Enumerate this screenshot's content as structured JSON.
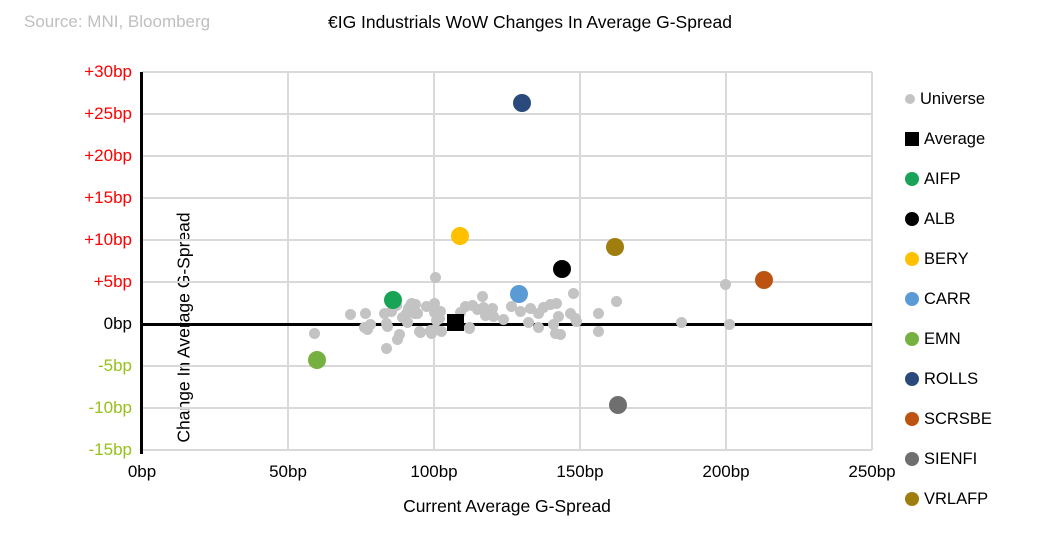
{
  "header": {
    "source": "Source: MNI, Bloomberg",
    "title": "€IG Industrials WoW Changes In Average G-Spread"
  },
  "colors": {
    "background": "#ffffff",
    "grid": "#d9d9d9",
    "axis": "#000000",
    "tick_positive": "#ff0000",
    "tick_zero": "#000000",
    "tick_negative": "#97c11a",
    "source_text": "#bfbfbf"
  },
  "chart_data": {
    "type": "scatter",
    "title": "€IG Industrials WoW Changes In Average G-Spread",
    "xlabel": "Current Average G-Spread",
    "ylabel": "Change In Average G-Spread",
    "xlim": [
      0,
      250
    ],
    "ylim": [
      -15,
      30
    ],
    "grid": true,
    "legend_position": "right",
    "x_ticks": [
      {
        "value": 0,
        "label": "0bp"
      },
      {
        "value": 50,
        "label": "50bp"
      },
      {
        "value": 100,
        "label": "100bp"
      },
      {
        "value": 150,
        "label": "150bp"
      },
      {
        "value": 200,
        "label": "200bp"
      },
      {
        "value": 250,
        "label": "250bp"
      }
    ],
    "y_ticks": [
      {
        "value": 30,
        "label": "+30bp",
        "color": "#ff0000"
      },
      {
        "value": 25,
        "label": "+25bp",
        "color": "#ff0000"
      },
      {
        "value": 20,
        "label": "+20bp",
        "color": "#ff0000"
      },
      {
        "value": 15,
        "label": "+15bp",
        "color": "#ff0000"
      },
      {
        "value": 10,
        "label": "+10bp",
        "color": "#ff0000"
      },
      {
        "value": 5,
        "label": "+5bp",
        "color": "#ff0000"
      },
      {
        "value": 0,
        "label": "0bp",
        "color": "#000000"
      },
      {
        "value": -5,
        "label": "-5bp",
        "color": "#97c11a"
      },
      {
        "value": -10,
        "label": "-10bp",
        "color": "#97c11a"
      },
      {
        "value": -15,
        "label": "-15bp",
        "color": "#97c11a"
      }
    ],
    "series": [
      {
        "name": "Universe",
        "marker": "circle",
        "size": 11,
        "legend_size": 10,
        "color": "#c3c3c3",
        "points": [
          [
            59.0,
            -1.1
          ],
          [
            71.3,
            1.1
          ],
          [
            76.5,
            1.2
          ],
          [
            76.2,
            -0.4
          ],
          [
            77.3,
            -0.6
          ],
          [
            78.4,
            0.0
          ],
          [
            83.0,
            1.2
          ],
          [
            83.9,
            0.1
          ],
          [
            84.1,
            -0.3
          ],
          [
            85.3,
            1.5
          ],
          [
            87.1,
            2.2
          ],
          [
            88.3,
            -1.2
          ],
          [
            83.6,
            -2.9
          ],
          [
            87.5,
            -1.8
          ],
          [
            89.3,
            0.8
          ],
          [
            90.7,
            1.2
          ],
          [
            91.0,
            0.2
          ],
          [
            91.1,
            1.9
          ],
          [
            92.1,
            2.2
          ],
          [
            92.2,
            2.5
          ],
          [
            93.4,
            1.3
          ],
          [
            93.6,
            2.3
          ],
          [
            94.4,
            1.2
          ],
          [
            95.1,
            -0.9
          ],
          [
            95.5,
            -1.0
          ],
          [
            97.4,
            2.1
          ],
          [
            98.9,
            -0.8
          ],
          [
            99.1,
            -1.1
          ],
          [
            100.0,
            1.4
          ],
          [
            100.2,
            2.5
          ],
          [
            100.4,
            5.5
          ],
          [
            100.6,
            -0.7
          ],
          [
            100.8,
            1.5
          ],
          [
            101.0,
            0.4
          ],
          [
            101.9,
            0.7
          ],
          [
            102.3,
            1.5
          ],
          [
            102.5,
            -0.9
          ],
          [
            109.1,
            1.4
          ],
          [
            110.9,
            2.1
          ],
          [
            112.0,
            -0.5
          ],
          [
            112.3,
            -0.4
          ],
          [
            113.1,
            2.2
          ],
          [
            115.0,
            1.7
          ],
          [
            116.5,
            3.3
          ],
          [
            117.1,
            2.0
          ],
          [
            117.6,
            1.0
          ],
          [
            120.0,
            1.8
          ],
          [
            120.5,
            0.9
          ],
          [
            123.9,
            0.5
          ],
          [
            126.7,
            2.1
          ],
          [
            129.6,
            1.5
          ],
          [
            132.4,
            0.2
          ],
          [
            133.0,
            1.8
          ],
          [
            135.8,
            1.2
          ],
          [
            135.8,
            -0.4
          ],
          [
            137.5,
            2.0
          ],
          [
            139.8,
            2.3
          ],
          [
            141.0,
            0.0
          ],
          [
            141.5,
            -1.1
          ],
          [
            142.1,
            2.5
          ],
          [
            142.7,
            0.9
          ],
          [
            143.2,
            -1.3
          ],
          [
            146.6,
            1.3
          ],
          [
            147.8,
            3.6
          ],
          [
            148.4,
            0.7
          ],
          [
            148.9,
            0.3
          ],
          [
            156.3,
            1.3
          ],
          [
            156.3,
            -0.9
          ],
          [
            162.6,
            2.7
          ],
          [
            184.8,
            0.2
          ],
          [
            199.9,
            4.7
          ],
          [
            201.2,
            0.0
          ]
        ]
      },
      {
        "name": "Average",
        "marker": "square",
        "size": 17,
        "legend_size": 14,
        "color": "#000000",
        "points": [
          [
            107.4,
            0.2
          ]
        ]
      },
      {
        "name": "AIFP",
        "marker": "circle",
        "size": 18,
        "legend_size": 14,
        "color": "#18a357",
        "points": [
          [
            86.0,
            2.9
          ]
        ]
      },
      {
        "name": "ALB",
        "marker": "circle",
        "size": 18,
        "legend_size": 14,
        "color": "#000000",
        "points": [
          [
            144.0,
            6.6
          ]
        ]
      },
      {
        "name": "BERY",
        "marker": "circle",
        "size": 18,
        "legend_size": 14,
        "color": "#ffc000",
        "points": [
          [
            109.0,
            10.5
          ]
        ]
      },
      {
        "name": "CARR",
        "marker": "circle",
        "size": 18,
        "legend_size": 14,
        "color": "#5b9bd5",
        "points": [
          [
            129.0,
            3.6
          ]
        ]
      },
      {
        "name": "EMN",
        "marker": "circle",
        "size": 18,
        "legend_size": 14,
        "color": "#76b041",
        "points": [
          [
            60.0,
            -4.3
          ]
        ]
      },
      {
        "name": "ROLLS",
        "marker": "circle",
        "size": 18,
        "legend_size": 14,
        "color": "#2a4a7d",
        "points": [
          [
            130.0,
            26.3
          ]
        ]
      },
      {
        "name": "SCRSBE",
        "marker": "circle",
        "size": 18,
        "legend_size": 14,
        "color": "#bc5310",
        "points": [
          [
            213.0,
            5.2
          ]
        ]
      },
      {
        "name": "SIENFI",
        "marker": "circle",
        "size": 18,
        "legend_size": 14,
        "color": "#6f6f6f",
        "texture": "dotted",
        "points": [
          [
            163.0,
            -9.7
          ]
        ]
      },
      {
        "name": "VRLAFP",
        "marker": "circle",
        "size": 18,
        "legend_size": 14,
        "color": "#a07e0d",
        "points": [
          [
            162.0,
            9.2
          ]
        ]
      }
    ]
  }
}
